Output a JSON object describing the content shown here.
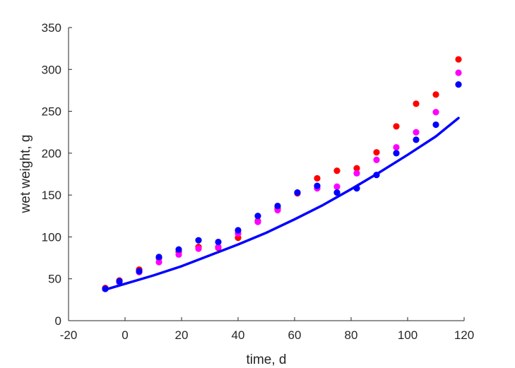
{
  "chart_data": {
    "type": "scatter",
    "xlabel": "time, d",
    "ylabel": "wet weight, g",
    "xlim": [
      -20,
      120
    ],
    "ylim": [
      0,
      350
    ],
    "x_ticks": [
      -20,
      0,
      20,
      40,
      60,
      80,
      100,
      120
    ],
    "y_ticks": [
      0,
      50,
      100,
      150,
      200,
      250,
      300,
      350
    ],
    "grid": false,
    "series": [
      {
        "type": "scatter",
        "color": "#ff0000",
        "points": [
          [
            -7,
            39
          ],
          [
            -2,
            48
          ],
          [
            5,
            61
          ],
          [
            12,
            75
          ],
          [
            19,
            82
          ],
          [
            26,
            88
          ],
          [
            33,
            87
          ],
          [
            40,
            99
          ],
          [
            47,
            119
          ],
          [
            54,
            134
          ],
          [
            61,
            152
          ],
          [
            68,
            170
          ],
          [
            75,
            179
          ],
          [
            82,
            182
          ],
          [
            89,
            201
          ],
          [
            96,
            232
          ],
          [
            103,
            259
          ],
          [
            110,
            270
          ],
          [
            118,
            312
          ]
        ]
      },
      {
        "type": "scatter",
        "color": "#ff00ff",
        "points": [
          [
            -7,
            38
          ],
          [
            -2,
            46
          ],
          [
            5,
            58
          ],
          [
            12,
            70
          ],
          [
            19,
            79
          ],
          [
            26,
            86
          ],
          [
            33,
            88
          ],
          [
            40,
            104
          ],
          [
            47,
            118
          ],
          [
            54,
            132
          ],
          [
            61,
            153
          ],
          [
            68,
            158
          ],
          [
            75,
            160
          ],
          [
            82,
            176
          ],
          [
            89,
            192
          ],
          [
            96,
            207
          ],
          [
            103,
            225
          ],
          [
            110,
            249
          ],
          [
            118,
            296
          ]
        ]
      },
      {
        "type": "scatter",
        "color": "#0000ff",
        "points": [
          [
            -7,
            38
          ],
          [
            -2,
            47
          ],
          [
            5,
            59
          ],
          [
            12,
            76
          ],
          [
            19,
            85
          ],
          [
            26,
            96
          ],
          [
            33,
            94
          ],
          [
            40,
            108
          ],
          [
            47,
            125
          ],
          [
            54,
            137
          ],
          [
            61,
            153
          ],
          [
            68,
            161
          ],
          [
            75,
            153
          ],
          [
            82,
            158
          ],
          [
            89,
            174
          ],
          [
            96,
            200
          ],
          [
            103,
            216
          ],
          [
            110,
            234
          ],
          [
            118,
            282
          ]
        ]
      },
      {
        "type": "line",
        "color": "#0000ff",
        "points": [
          [
            -7,
            37
          ],
          [
            0,
            44
          ],
          [
            10,
            54
          ],
          [
            20,
            65
          ],
          [
            30,
            78
          ],
          [
            40,
            91
          ],
          [
            50,
            105
          ],
          [
            60,
            121
          ],
          [
            70,
            138
          ],
          [
            80,
            157
          ],
          [
            90,
            177
          ],
          [
            100,
            198
          ],
          [
            110,
            220
          ],
          [
            118,
            242
          ]
        ]
      }
    ]
  }
}
